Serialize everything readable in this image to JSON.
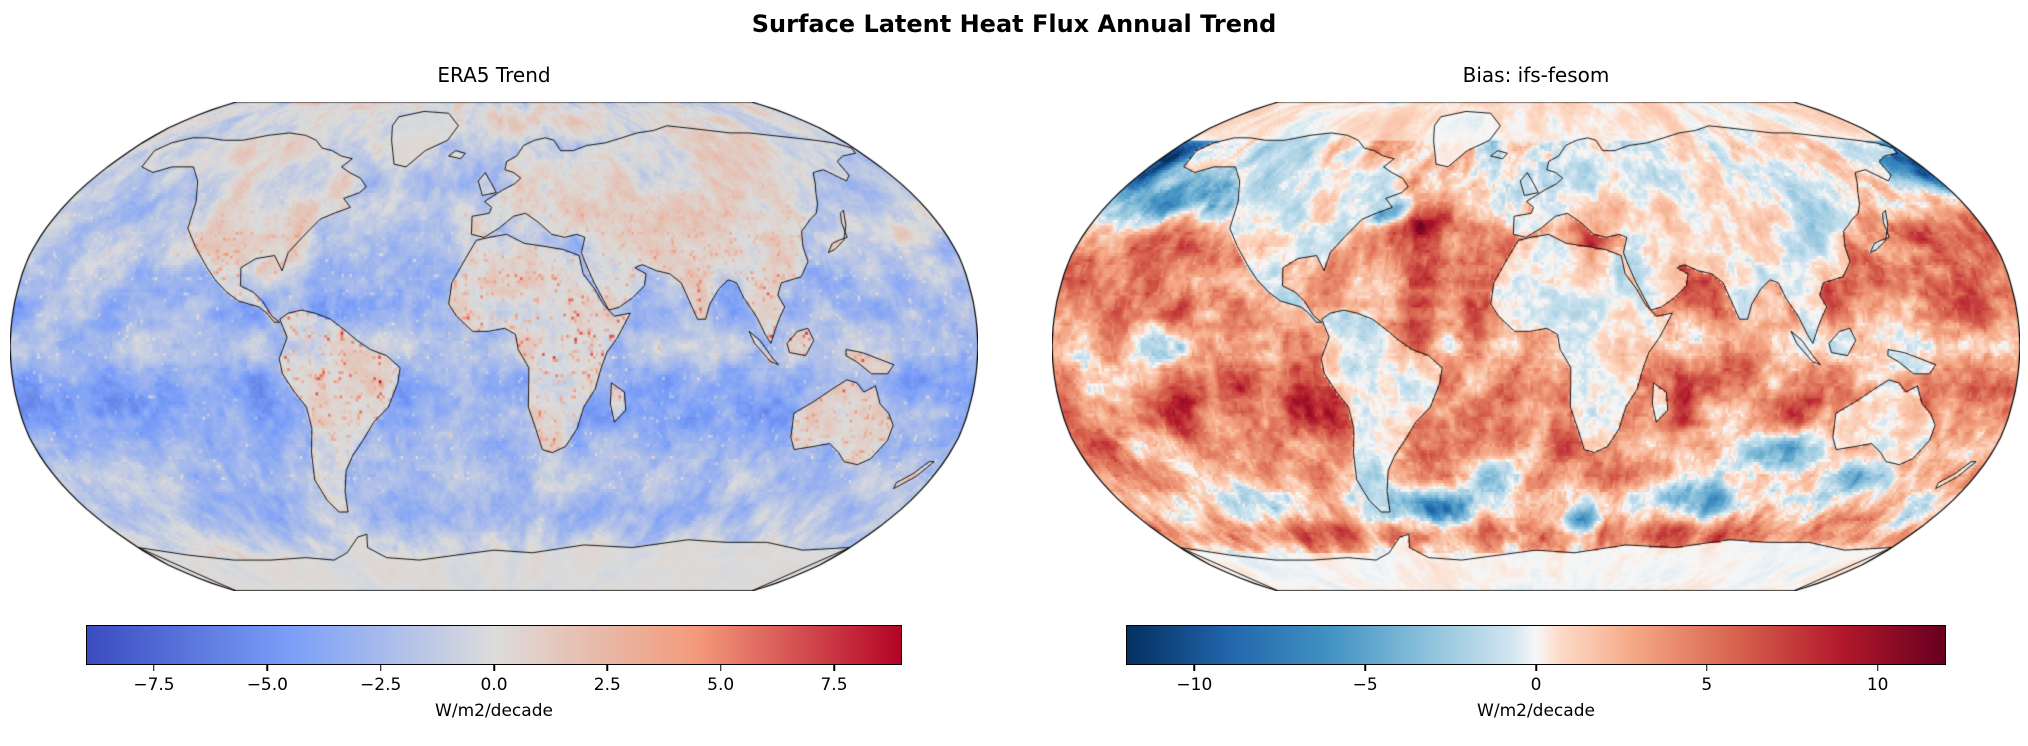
{
  "figure": {
    "title": "Surface Latent Heat Flux Annual Trend",
    "background_color": "#ffffff",
    "text_color": "#000000"
  },
  "chart_data": [
    {
      "id": "era5",
      "type": "heatmap",
      "projection": "robinson",
      "title": "ERA5 Trend",
      "units": "W/m2/decade",
      "vmin": -9,
      "vmax": 9,
      "colormap": {
        "name": "coolwarm",
        "stops": [
          [
            0,
            "#3b4cc0"
          ],
          [
            0.25,
            "#7b9ff9"
          ],
          [
            0.5,
            "#dcdcdb"
          ],
          [
            0.75,
            "#f49a7b"
          ],
          [
            1,
            "#b40426"
          ]
        ]
      },
      "colorbar": {
        "orientation": "horizontal",
        "label": "W/m2/decade",
        "ticks": [
          -7.5,
          -5,
          -2.5,
          0,
          2.5,
          5,
          7.5
        ],
        "tick_labels": [
          "−7.5",
          "−5.0",
          "−2.5",
          "0.0",
          "2.5",
          "5.0",
          "7.5"
        ]
      },
      "summary": "ERA5 annual trend of surface latent heat flux on a Robinson map. Oceans predominantly negative (blue), strongest −3 to −6 W/m2/decade in the subtropical gyres of the Pacific, Atlantic and Indian Oceans; slightly weaker right at the equator. Land and ice sheets near zero (light gray) with scattered strong positive (red) speckles over tropical land (Mexico, central Africa, India, Maritime Continent, Australia) and red patches in the Gulf of Mexico, western Mediterranean and Kuroshio extension.",
      "notable_features": [
        {
          "region": "Subtropical South Pacific gyre",
          "value_wm2_decade": -5
        },
        {
          "region": "Subtropical Indian Ocean gyre",
          "value_wm2_decade": -4.5
        },
        {
          "region": "Gulf of Mexico / US east coast",
          "value_wm2_decade": 2.5
        },
        {
          "region": "Tropical land speckles (central Africa, Mexico)",
          "value_wm2_decade": 6
        },
        {
          "region": "Arctic Ocean",
          "value_wm2_decade": 0
        },
        {
          "region": "Ice sheets (Greenland, Antarctica)",
          "value_wm2_decade": 0
        }
      ]
    },
    {
      "id": "bias",
      "type": "heatmap",
      "projection": "robinson",
      "title": "Bias: ifs-fesom",
      "units": "W/m2/decade",
      "vmin": -12,
      "vmax": 12,
      "colormap": {
        "name": "RdBu_r",
        "stops": [
          [
            0,
            "#053061"
          ],
          [
            0.125,
            "#2166ac"
          ],
          [
            0.25,
            "#4393c3"
          ],
          [
            0.375,
            "#92c5de"
          ],
          [
            0.47,
            "#d1e5f0"
          ],
          [
            0.5,
            "#f7f7f7"
          ],
          [
            0.53,
            "#fddbc7"
          ],
          [
            0.625,
            "#f4a582"
          ],
          [
            0.75,
            "#d6604d"
          ],
          [
            0.875,
            "#b2182b"
          ],
          [
            1,
            "#67001f"
          ]
        ]
      },
      "colorbar": {
        "orientation": "horizontal",
        "label": "W/m2/decade",
        "ticks": [
          -10,
          -5,
          0,
          5,
          10
        ],
        "tick_labels": [
          "−10",
          "−5",
          "0",
          "5",
          "10"
        ]
      },
      "summary": "Bias of the ifs-fesom simulated trend relative to ERA5. Oceans predominantly positive (red, +3 to +9 W/m2/decade) with a dark-red Gulf Stream / North Atlantic streak and Agulhas region; whitish band along the equatorial Pacific; negative (blue) patches in the NE Pacific, Bering/Chukchi area, NW Atlantic slope, west/south of Australia and a strong dark-blue band in the Southern Ocean southwest Atlantic sector; reddish ring near the Antarctic coast; land and Antarctica near zero (white) with mixed speckles.",
      "notable_features": [
        {
          "region": "Gulf Stream / North Atlantic current",
          "value_wm2_decade": 11
        },
        {
          "region": "Tropical and subtropical oceans",
          "value_wm2_decade": 5
        },
        {
          "region": "Northeast Pacific",
          "value_wm2_decade": -6
        },
        {
          "region": "Southern Ocean SW Atlantic sector",
          "value_wm2_decade": -9
        },
        {
          "region": "Equatorial Pacific band",
          "value_wm2_decade": 1
        },
        {
          "region": "Antarctic coastal ring",
          "value_wm2_decade": 4
        },
        {
          "region": "Antarctica interior",
          "value_wm2_decade": 0
        }
      ]
    }
  ]
}
